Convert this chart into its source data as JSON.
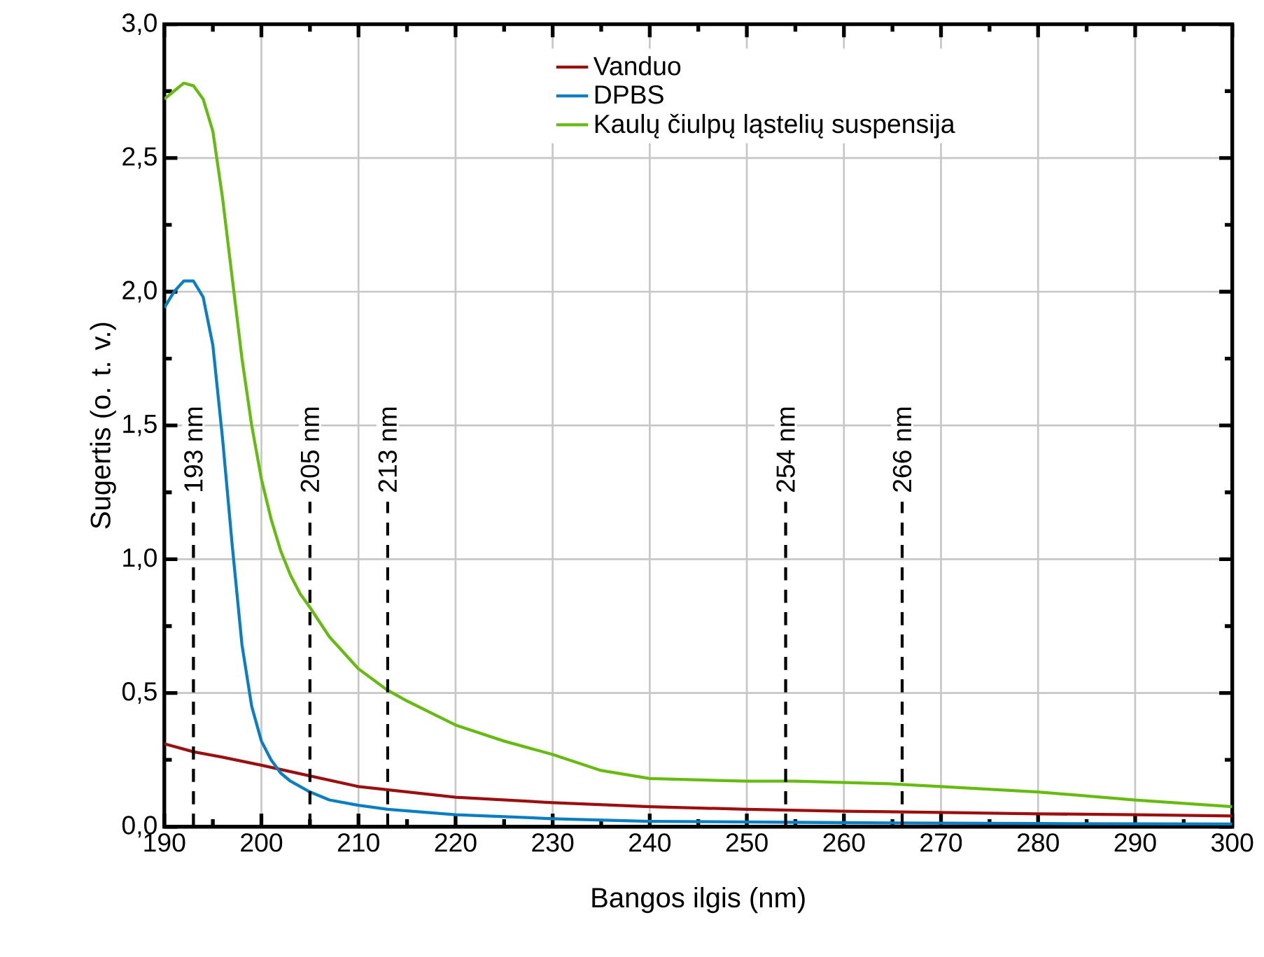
{
  "chart_data": {
    "type": "line",
    "xlabel": "Bangos ilgis (nm)",
    "ylabel": "Sugertis (o. t. v.)",
    "xlim": [
      190,
      300
    ],
    "ylim": [
      0,
      3.0
    ],
    "xticks": [
      190,
      200,
      210,
      220,
      230,
      240,
      250,
      260,
      270,
      280,
      290,
      300
    ],
    "yticks": [
      {
        "value": 0,
        "label": "0,0"
      },
      {
        "value": 0.5,
        "label": "0,5"
      },
      {
        "value": 1.0,
        "label": "1,0"
      },
      {
        "value": 1.5,
        "label": "1,5"
      },
      {
        "value": 2.0,
        "label": "2,0"
      },
      {
        "value": 2.5,
        "label": "2,5"
      },
      {
        "value": 3.0,
        "label": "3,0"
      }
    ],
    "grid": true,
    "legend": "top right",
    "marker": "none",
    "line_style": "solid",
    "series": [
      {
        "name": "Vanduo",
        "color": "#9b0f0f",
        "x": [
          190,
          193,
          196,
          200,
          205,
          210,
          215,
          220,
          230,
          240,
          250,
          260,
          270,
          280,
          290,
          300
        ],
        "values": [
          0.31,
          0.28,
          0.26,
          0.23,
          0.19,
          0.15,
          0.13,
          0.11,
          0.09,
          0.075,
          0.065,
          0.058,
          0.053,
          0.048,
          0.045,
          0.04
        ]
      },
      {
        "name": "DPBS",
        "color": "#0a7ec2",
        "x": [
          190,
          191,
          192,
          193,
          194,
          195,
          196,
          197,
          198,
          199,
          200,
          201,
          202,
          203,
          204,
          205,
          207,
          210,
          213,
          220,
          230,
          240,
          260,
          280,
          300
        ],
        "values": [
          1.94,
          2.0,
          2.04,
          2.04,
          1.98,
          1.8,
          1.45,
          1.05,
          0.68,
          0.45,
          0.32,
          0.25,
          0.2,
          0.17,
          0.15,
          0.13,
          0.1,
          0.08,
          0.065,
          0.045,
          0.03,
          0.02,
          0.015,
          0.012,
          0.01
        ]
      },
      {
        "name": "Kaulų čiulpų ląstelių suspensija",
        "color": "#66bb11",
        "x": [
          190,
          191,
          192,
          193,
          194,
          195,
          196,
          197,
          198,
          199,
          200,
          201,
          202,
          203,
          204,
          205,
          207,
          210,
          213,
          215,
          220,
          225,
          230,
          235,
          240,
          245,
          250,
          255,
          260,
          265,
          270,
          280,
          290,
          300
        ],
        "values": [
          2.72,
          2.75,
          2.78,
          2.77,
          2.72,
          2.6,
          2.35,
          2.05,
          1.75,
          1.5,
          1.3,
          1.15,
          1.03,
          0.94,
          0.87,
          0.82,
          0.71,
          0.59,
          0.51,
          0.47,
          0.38,
          0.32,
          0.27,
          0.21,
          0.18,
          0.175,
          0.17,
          0.17,
          0.165,
          0.16,
          0.15,
          0.13,
          0.1,
          0.075
        ]
      }
    ],
    "ref_lines": [
      {
        "axis": "x",
        "value": 193,
        "label": "193 nm",
        "line_style": "dashed",
        "color": "#000000"
      },
      {
        "axis": "x",
        "value": 205,
        "label": "205 nm",
        "line_style": "dashed",
        "color": "#000000"
      },
      {
        "axis": "x",
        "value": 213,
        "label": "213 nm",
        "line_style": "dashed",
        "color": "#000000"
      },
      {
        "axis": "x",
        "value": 254,
        "label": "254 nm",
        "line_style": "dashed",
        "color": "#000000"
      },
      {
        "axis": "x",
        "value": 266,
        "label": "266 nm",
        "line_style": "dashed",
        "color": "#000000"
      }
    ]
  }
}
